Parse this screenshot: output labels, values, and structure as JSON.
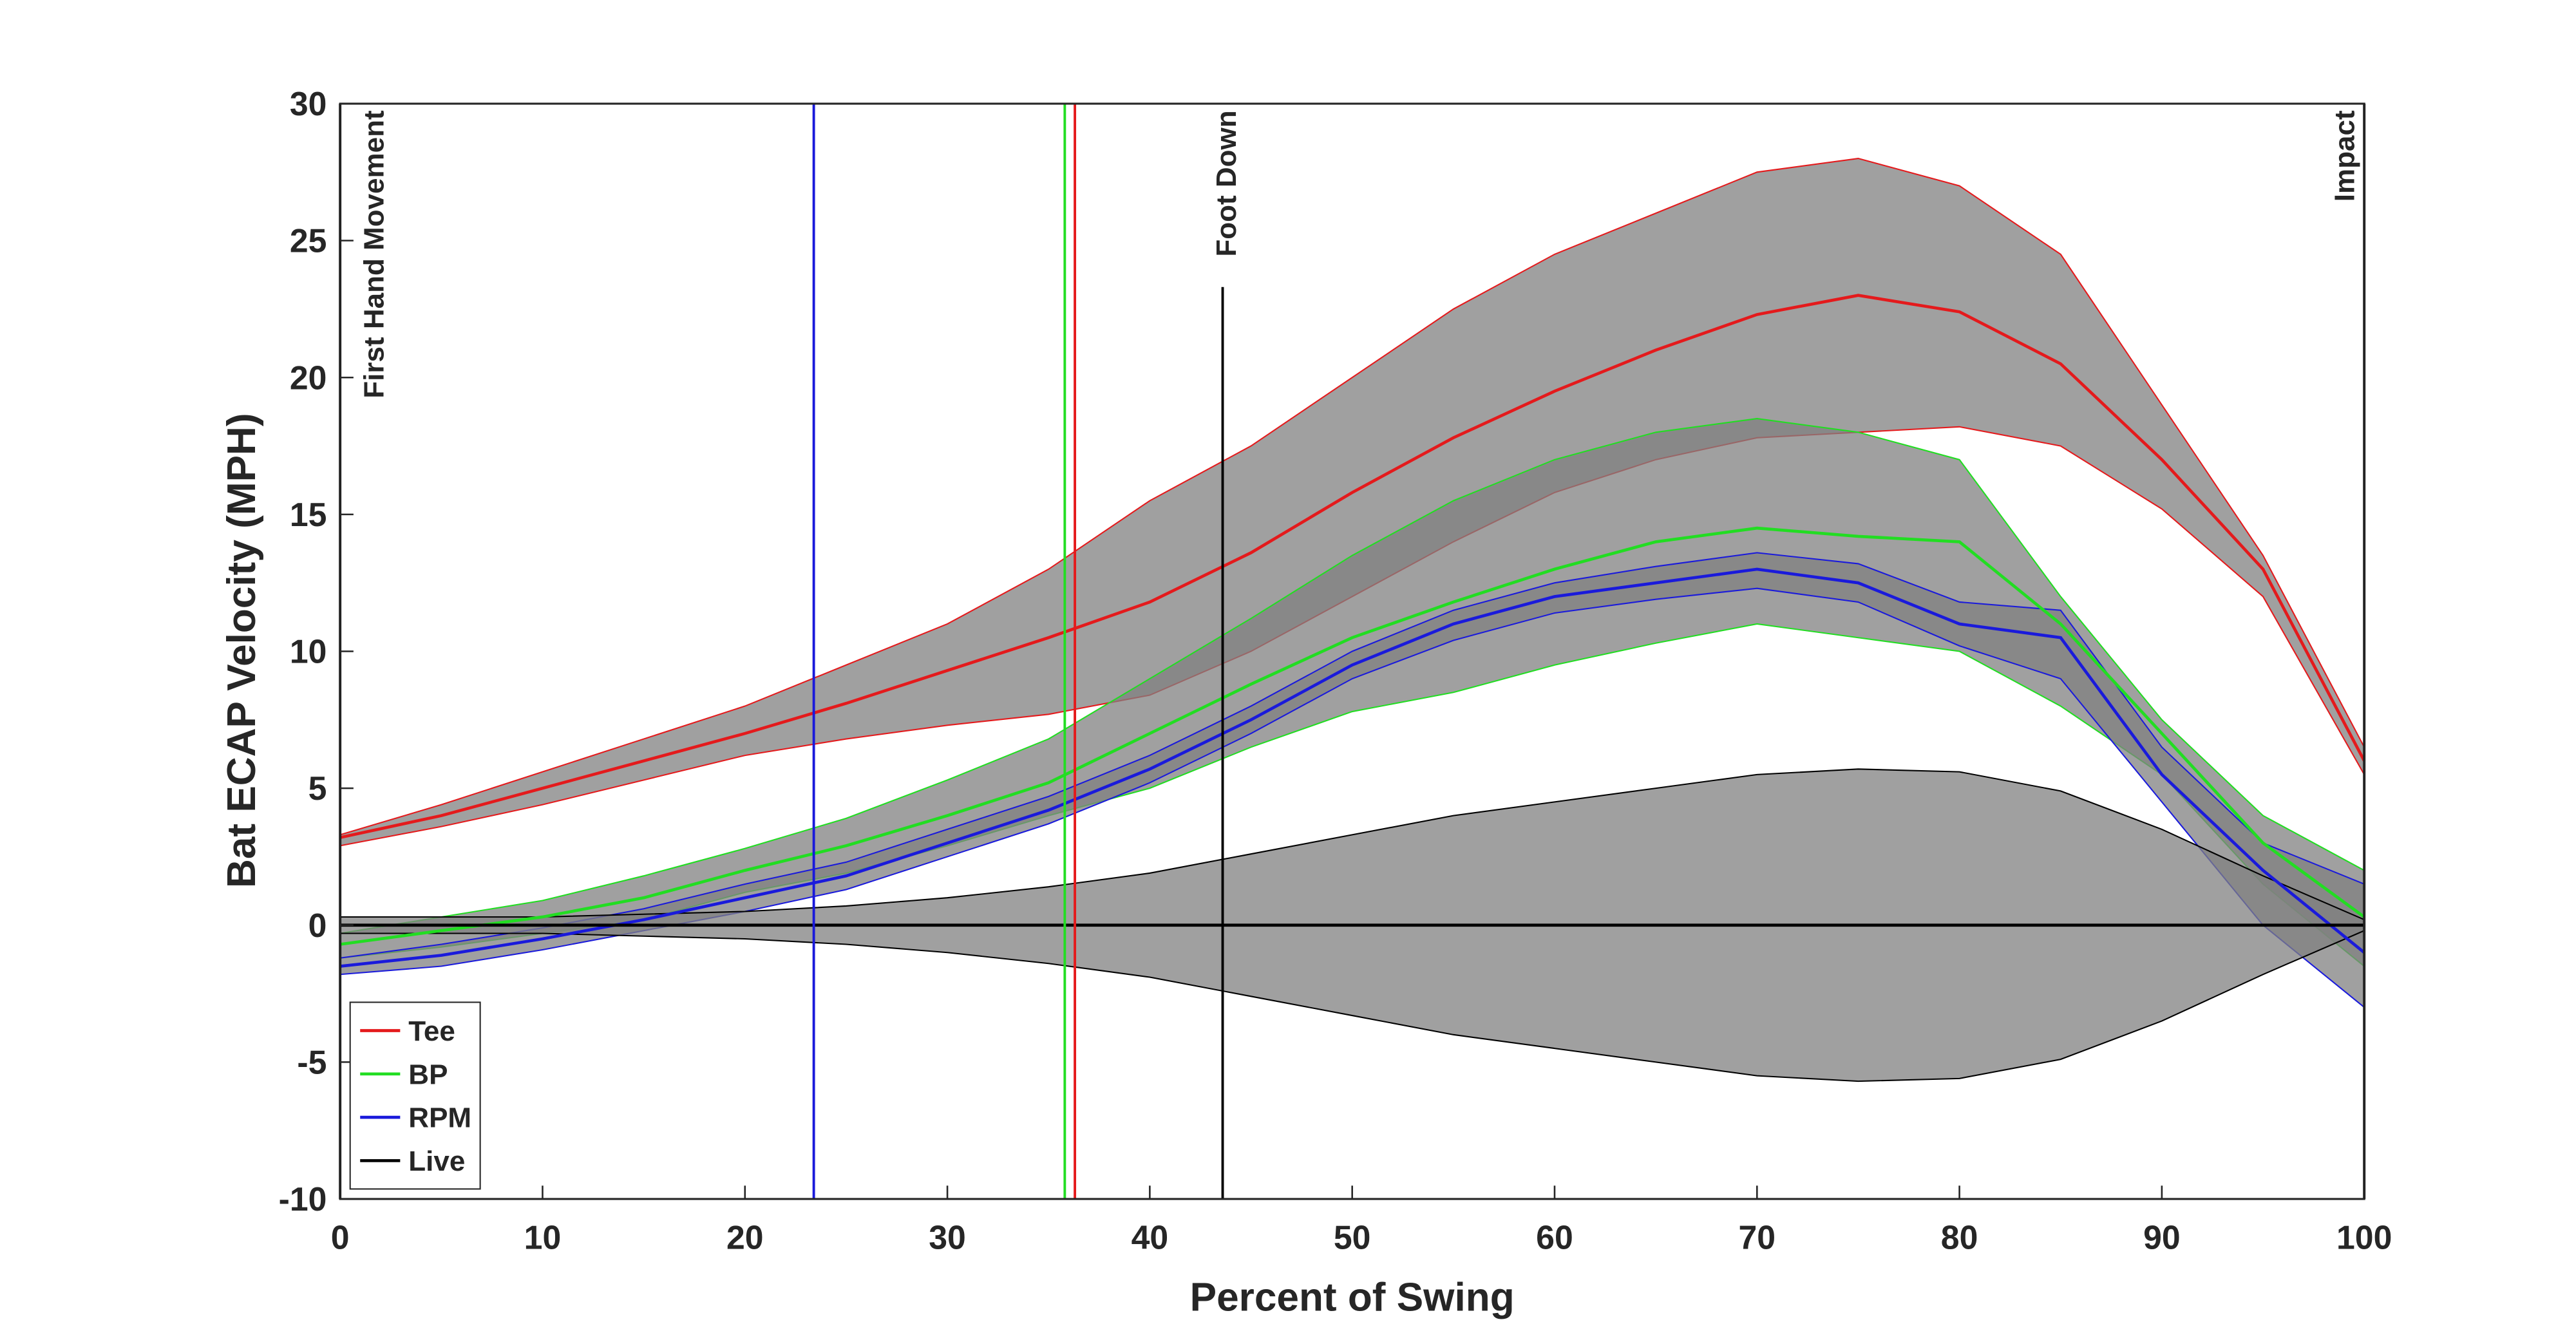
{
  "chart_data": {
    "type": "line",
    "xlabel": "Percent of Swing",
    "ylabel": "Bat ECAP Velocity (MPH)",
    "x": [
      0,
      5,
      10,
      15,
      20,
      25,
      30,
      35,
      40,
      45,
      50,
      55,
      60,
      65,
      70,
      75,
      80,
      85,
      90,
      95,
      100
    ],
    "series": [
      {
        "name": "Tee",
        "color": "#e41a1c",
        "values": [
          3.2,
          4,
          5,
          6,
          7,
          8.1,
          9.3,
          10.5,
          11.8,
          13.6,
          15.8,
          17.8,
          19.5,
          21,
          22.3,
          23,
          22.4,
          20.5,
          17,
          13,
          6
        ],
        "upper": [
          3.3,
          4.4,
          5.6,
          6.8,
          8,
          9.5,
          11,
          13,
          15.5,
          17.5,
          20,
          22.5,
          24.5,
          26,
          27.5,
          28,
          27,
          24.5,
          19,
          13.5,
          6.5
        ],
        "lower": [
          2.9,
          3.6,
          4.4,
          5.3,
          6.2,
          6.8,
          7.3,
          7.7,
          8.4,
          10,
          12,
          14,
          15.8,
          17,
          17.8,
          18,
          18.2,
          17.5,
          15.2,
          12,
          5.5
        ]
      },
      {
        "name": "BP",
        "color": "#22dd22",
        "values": [
          -0.7,
          -0.2,
          0.3,
          1,
          2,
          2.9,
          4,
          5.2,
          7,
          8.8,
          10.5,
          11.8,
          13,
          14,
          14.5,
          14.2,
          14,
          11,
          7,
          3,
          0.3
        ],
        "upper": [
          -0.3,
          0.3,
          0.9,
          1.8,
          2.8,
          3.9,
          5.3,
          6.8,
          9,
          11.2,
          13.5,
          15.5,
          17,
          18,
          18.5,
          18,
          17,
          12,
          7.5,
          4,
          2
        ],
        "lower": [
          -1.2,
          -0.8,
          -0.3,
          0.2,
          1.2,
          1.9,
          2.9,
          4,
          5,
          6.5,
          7.8,
          8.5,
          9.5,
          10.3,
          11,
          10.5,
          10,
          8,
          5.5,
          1.5,
          -1.5
        ]
      },
      {
        "name": "RPM",
        "color": "#1a1adb",
        "values": [
          -1.5,
          -1.1,
          -0.5,
          0.2,
          1,
          1.8,
          3,
          4.2,
          5.7,
          7.5,
          9.5,
          11,
          12,
          12.5,
          13,
          12.5,
          11,
          10.5,
          5.5,
          2,
          -1
        ],
        "upper": [
          -1.2,
          -0.7,
          -0.1,
          0.6,
          1.5,
          2.3,
          3.5,
          4.7,
          6.2,
          8,
          10,
          11.5,
          12.5,
          13.1,
          13.6,
          13.2,
          11.8,
          11.5,
          6.5,
          3,
          1.5
        ],
        "lower": [
          -1.8,
          -1.5,
          -0.9,
          -0.2,
          0.5,
          1.3,
          2.5,
          3.7,
          5.2,
          7,
          9,
          10.4,
          11.4,
          11.9,
          12.3,
          11.8,
          10.2,
          9,
          4.5,
          0,
          -3
        ]
      },
      {
        "name": "Live",
        "color": "#000000",
        "values": [
          0,
          0,
          0,
          0,
          0,
          0,
          0,
          0,
          0,
          0,
          0,
          0,
          0,
          0,
          0,
          0,
          0,
          0,
          0,
          0,
          0
        ],
        "upper": [
          0.3,
          0.3,
          0.3,
          0.4,
          0.5,
          0.7,
          1,
          1.4,
          1.9,
          2.6,
          3.3,
          4,
          4.5,
          5,
          5.5,
          5.7,
          5.6,
          4.9,
          3.5,
          1.8,
          0.2
        ],
        "lower": [
          -0.3,
          -0.3,
          -0.3,
          -0.4,
          -0.5,
          -0.7,
          -1,
          -1.4,
          -1.9,
          -2.6,
          -3.3,
          -4,
          -4.5,
          -5,
          -5.5,
          -5.7,
          -5.6,
          -4.9,
          -3.5,
          -1.8,
          -0.2
        ]
      }
    ],
    "band_color": "#808080",
    "events": [
      {
        "x": 0,
        "color": "#000000",
        "label": "First Hand Movement"
      },
      {
        "x": 23.4,
        "color": "#1a1adb"
      },
      {
        "x": 35.8,
        "color": "#22dd22"
      },
      {
        "x": 36.3,
        "color": "#e41a1c"
      },
      {
        "x": 43.6,
        "color": "#000000",
        "label": "Foot Down"
      },
      {
        "x": 100,
        "color": "#000000",
        "label": "Impact"
      }
    ],
    "xlim": [
      0,
      100
    ],
    "ylim": [
      -10,
      30
    ],
    "xticks": [
      0,
      10,
      20,
      30,
      40,
      50,
      60,
      70,
      80,
      90,
      100
    ],
    "yticks": [
      -10,
      -5,
      0,
      5,
      10,
      15,
      20,
      25,
      30
    ],
    "legend": "southwest"
  }
}
